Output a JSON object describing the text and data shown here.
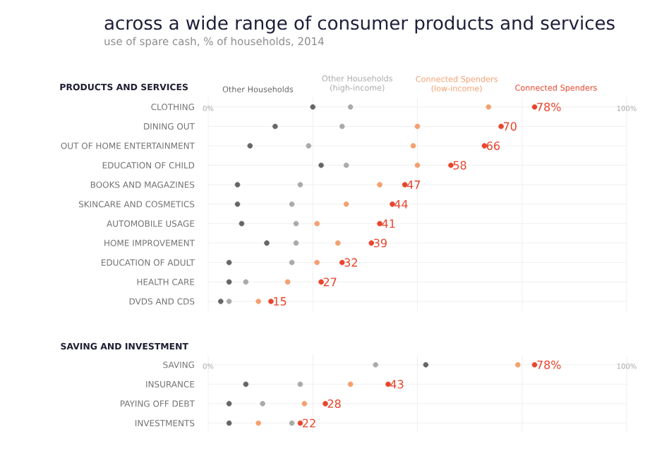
{
  "chart_data": [
    {
      "type": "scatter",
      "orientation": "horizontal",
      "title": "across a wide range of consumer products and services",
      "subtitle": "use of spare cash, % of households, 2014",
      "ylabel": "PRODUCTS AND SERVICES",
      "categories": [
        "CLOTHING",
        "DINING OUT",
        "OUT OF HOME ENTERTAINMENT",
        "EDUCATION OF CHILD",
        "BOOKS AND MAGAZINES",
        "SKINCARE AND COSMETICS",
        "AUTOMOBILE USAGE",
        "HOME IMPROVEMENT",
        "EDUCATION OF ADULT",
        "HEALTH CARE",
        "DVDS AND CDS"
      ],
      "series": [
        {
          "name": "Other Households",
          "color": "#666666",
          "values": [
            25,
            16,
            10,
            27,
            7,
            7,
            8,
            14,
            5,
            5,
            3
          ]
        },
        {
          "name": "Other Households (high-income)",
          "color": "#aaaaaa",
          "values": [
            34,
            32,
            24,
            33,
            22,
            20,
            21,
            21,
            20,
            9,
            5
          ]
        },
        {
          "name": "Connected Spenders (low-income)",
          "color": "#f4a070",
          "values": [
            67,
            50,
            49,
            50,
            41,
            33,
            26,
            31,
            26,
            19,
            12
          ]
        },
        {
          "name": "Connected Spenders",
          "color": "#e8452c",
          "values": [
            78,
            70,
            66,
            58,
            47,
            44,
            41,
            39,
            32,
            27,
            15
          ],
          "value_labels": [
            "78%",
            "70",
            "66",
            "58",
            "47",
            "44",
            "41",
            "39",
            "32",
            "27",
            "15"
          ]
        }
      ],
      "xlim": [
        0,
        100
      ],
      "xticks": [
        {
          "value": 0,
          "label": "0%"
        },
        {
          "value": 25,
          "label": null
        },
        {
          "value": 50,
          "label": null
        },
        {
          "value": 75,
          "label": null
        },
        {
          "value": 100,
          "label": "100%"
        }
      ],
      "grid": true,
      "legend": "top",
      "marker": "circle"
    },
    {
      "type": "scatter",
      "orientation": "horizontal",
      "ylabel": "SAVING AND INVESTMENT",
      "categories": [
        "SAVING",
        "INSURANCE",
        "PAYING OFF DEBT",
        "INVESTMENTS"
      ],
      "series": [
        {
          "color": "#666666",
          "values": [
            52,
            9,
            5,
            5
          ]
        },
        {
          "color": "#aaaaaa",
          "values": [
            40,
            22,
            13,
            20
          ]
        },
        {
          "color": "#f4a070",
          "values": [
            74,
            34,
            23,
            12
          ]
        },
        {
          "color": "#e8452c",
          "values": [
            78,
            43,
            28,
            22
          ],
          "value_labels": [
            "78%",
            "43",
            "28",
            "22"
          ]
        }
      ],
      "xlim": [
        0,
        100
      ],
      "xticks": [
        {
          "value": 0,
          "label": "0%"
        },
        {
          "value": 25,
          "label": null
        },
        {
          "value": 50,
          "label": null
        },
        {
          "value": 75,
          "label": null
        },
        {
          "value": 100,
          "label": "100%"
        }
      ],
      "grid": true,
      "marker": "circle"
    }
  ]
}
